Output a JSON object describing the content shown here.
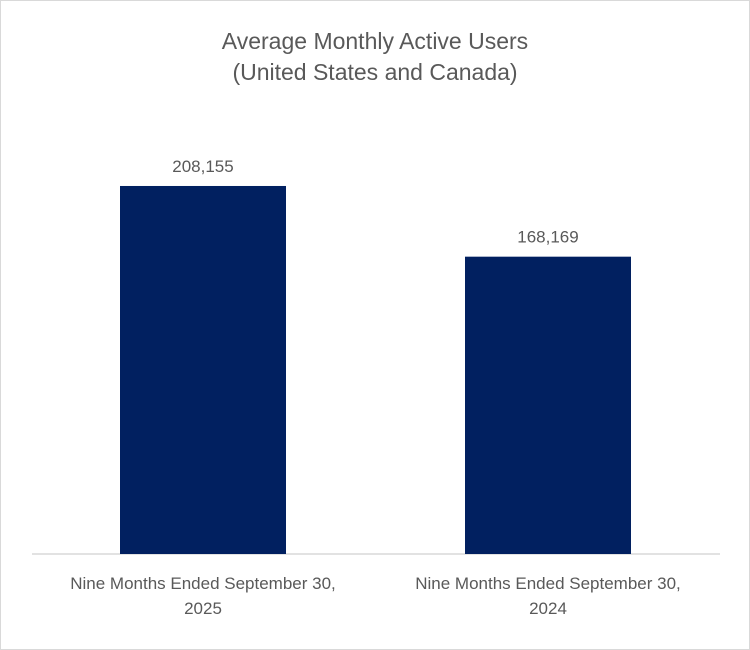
{
  "chart_data": {
    "type": "bar",
    "title": "Average Monthly Active Users",
    "subtitle": "(United States and Canada)",
    "categories": [
      "Nine Months Ended September 30, 2025",
      "Nine Months Ended September 30, 2024"
    ],
    "category_lines": [
      [
        "Nine Months Ended September 30,",
        "2025"
      ],
      [
        "Nine Months Ended September 30,",
        "2024"
      ]
    ],
    "values": [
      208155,
      168169
    ],
    "data_labels": [
      "208,155",
      "168,169"
    ],
    "ylim": [
      0,
      250000
    ],
    "grid": false,
    "legend": "none",
    "bar_color": "#012060",
    "axis_color": "#d9d9d9"
  }
}
